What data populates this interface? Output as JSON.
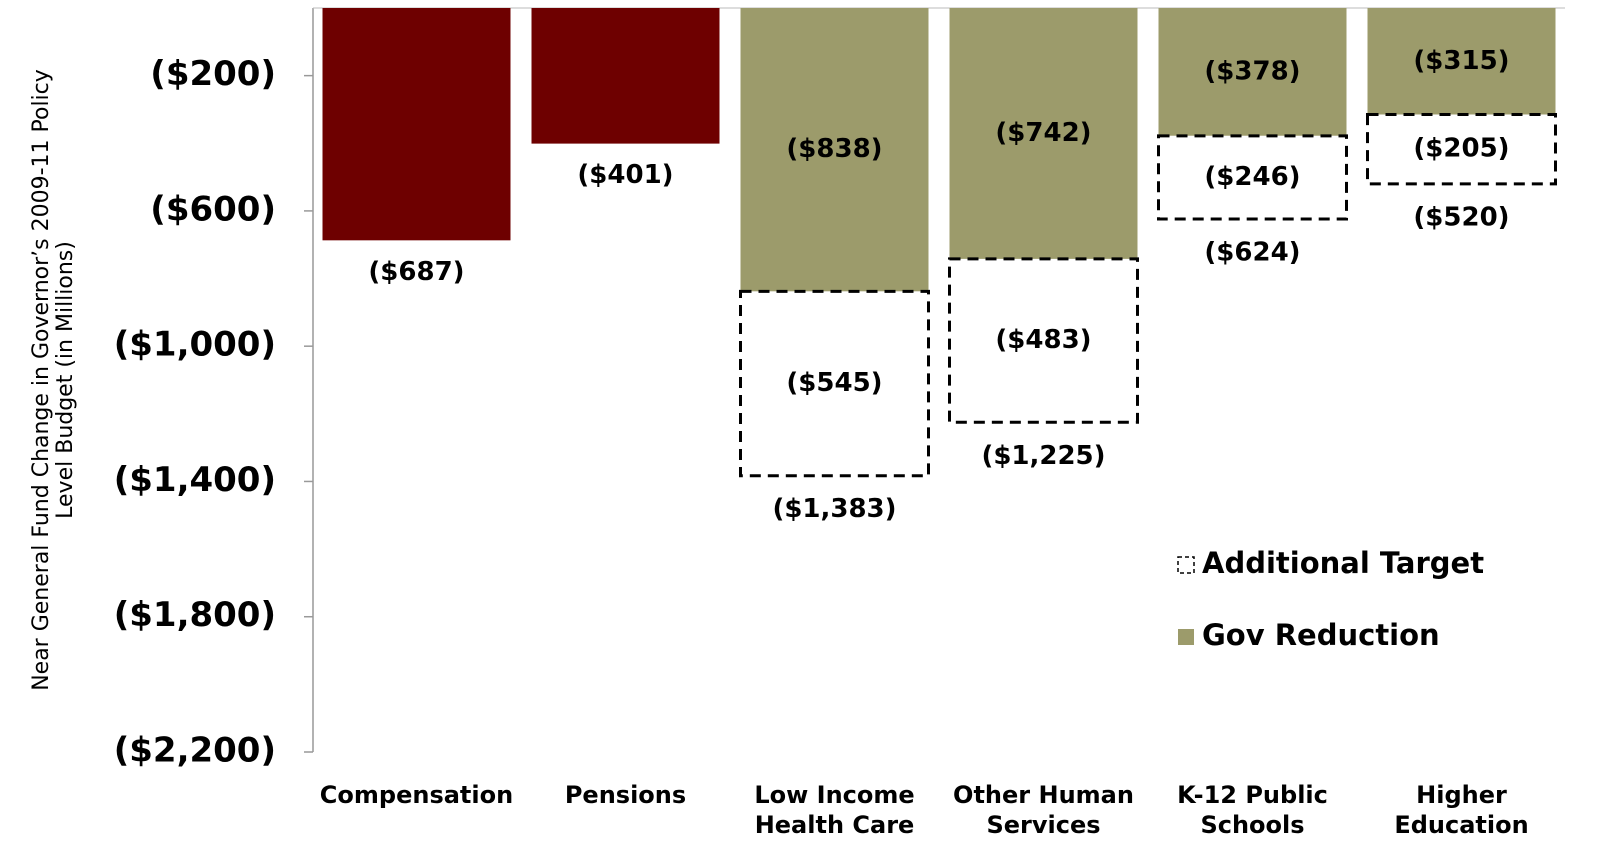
{
  "chart_data": {
    "type": "stacked_bar",
    "ylabel": [
      "Near General Fund Change in Governor’s 2009-11 Policy",
      "Level Budget (in Millions)"
    ],
    "categories": [
      "Compensation",
      "Pensions",
      "Low Income Health Care",
      "Other Human Services",
      "K-12 Public Schools",
      "Higher Education"
    ],
    "series": [
      {
        "name": "Gov Reduction",
        "color": "#9c9b6b",
        "point_colors": [
          "#6e0000",
          "#6e0000",
          "#9c9b6b",
          "#9c9b6b",
          "#9c9b6b",
          "#9c9b6b"
        ],
        "values": [
          -687,
          -401,
          -838,
          -742,
          -378,
          -315
        ],
        "value_labels": [
          "($687)",
          "($401)",
          "($838)",
          "($742)",
          "($378)",
          "($315)"
        ]
      },
      {
        "name": "Additional Target",
        "color": "#ffffff",
        "style": "dashed",
        "values": [
          null,
          null,
          -545,
          -483,
          -246,
          -205
        ],
        "value_labels": [
          null,
          null,
          "($545)",
          "($483)",
          "($246)",
          "($205)"
        ]
      }
    ],
    "totals": {
      "values": [
        null,
        null,
        -1383,
        -1225,
        -624,
        -520
      ],
      "value_labels": [
        null,
        null,
        "($1,383)",
        "($1,225)",
        "($624)",
        "($520)"
      ]
    },
    "ylim": [
      0,
      -2200
    ],
    "yticks": [
      {
        "value": -200,
        "label": "($200)"
      },
      {
        "value": -600,
        "label": "($600)"
      },
      {
        "value": -1000,
        "label": "($1,000)"
      },
      {
        "value": -1400,
        "label": "($1,400)"
      },
      {
        "value": -1800,
        "label": "($1,800)"
      },
      {
        "value": -2200,
        "label": "($2,200)"
      }
    ],
    "legend": "center right"
  }
}
